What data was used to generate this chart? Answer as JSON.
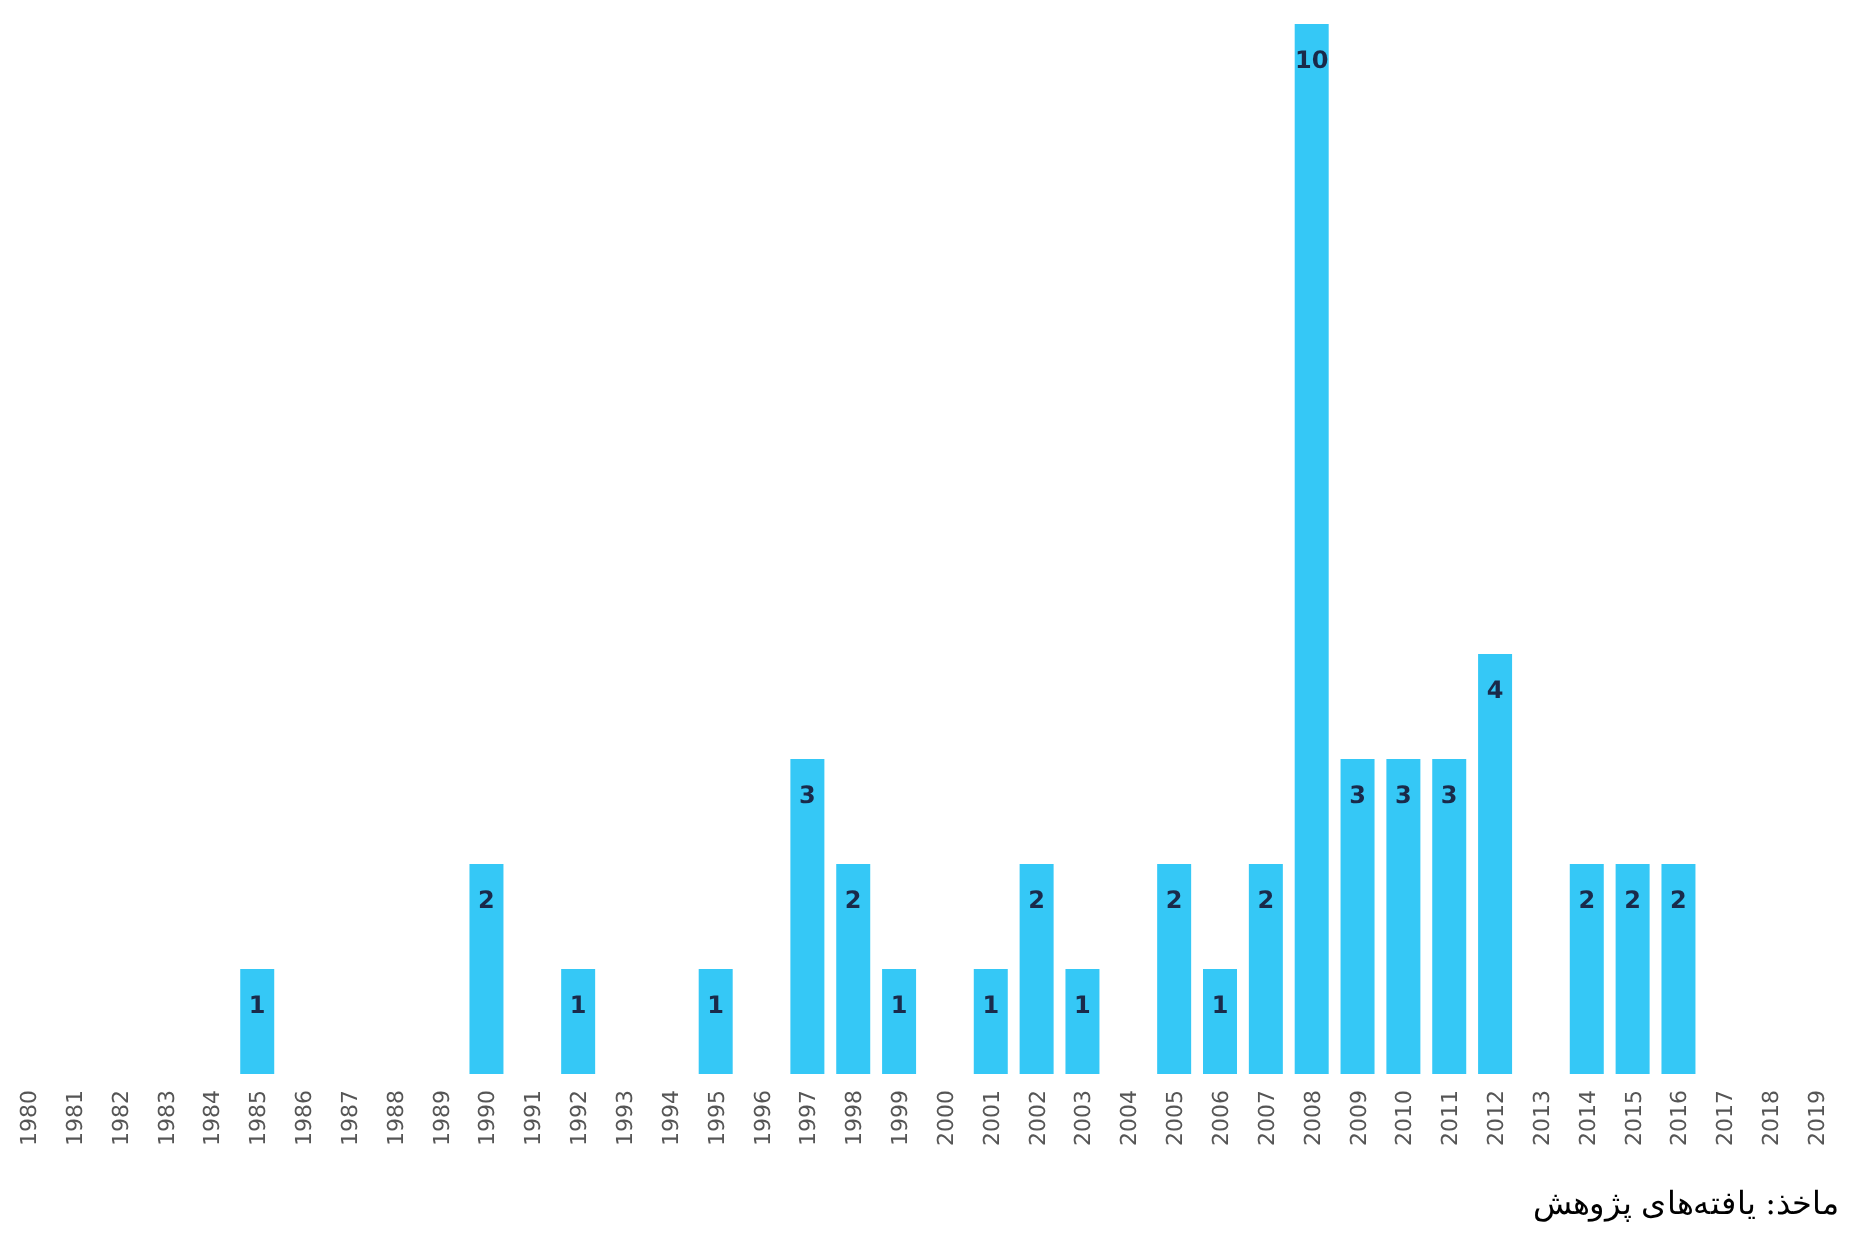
{
  "chart_data": {
    "type": "bar",
    "categories": [
      "1980",
      "1981",
      "1982",
      "1983",
      "1984",
      "1985",
      "1986",
      "1987",
      "1988",
      "1989",
      "1990",
      "1991",
      "1992",
      "1993",
      "1994",
      "1995",
      "1996",
      "1997",
      "1998",
      "1999",
      "2000",
      "2001",
      "2002",
      "2003",
      "2004",
      "2005",
      "2006",
      "2007",
      "2008",
      "2009",
      "2010",
      "2011",
      "2012",
      "2013",
      "2014",
      "2015",
      "2016",
      "2017",
      "2018",
      "2019"
    ],
    "values": [
      null,
      null,
      null,
      null,
      null,
      1,
      null,
      null,
      null,
      null,
      2,
      null,
      1,
      null,
      null,
      1,
      null,
      3,
      2,
      1,
      null,
      1,
      2,
      1,
      null,
      2,
      1,
      2,
      10,
      3,
      3,
      3,
      4,
      null,
      2,
      2,
      2,
      null,
      null,
      null
    ],
    "color": "#1fc2f5",
    "data_labels": true,
    "annotations": [
      "ماخذ: یافته‌های پژوهش"
    ]
  }
}
